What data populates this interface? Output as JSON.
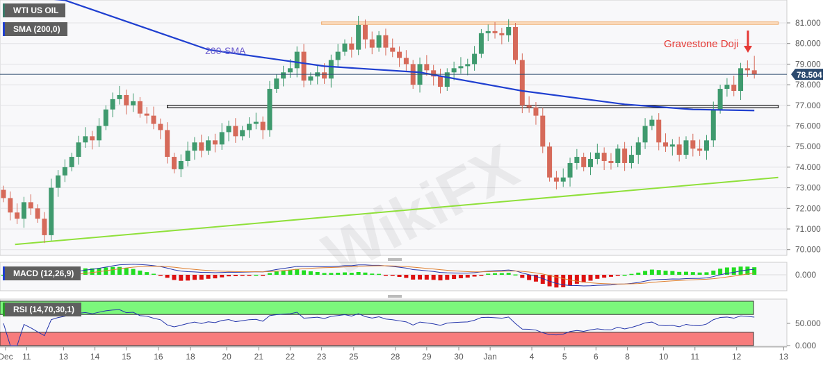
{
  "labels": {
    "instrument": "WTI US OIL",
    "sma": "SMA (200,0)",
    "macd": "MACD (12,26,9)",
    "rsi": "RSI (14,70,30,1)",
    "last_price": "78.504"
  },
  "colors": {
    "up": "#3f9a6e",
    "down": "#d66a5a",
    "sma": "#1f3fd0",
    "trendline": "#8fe03a",
    "resistance": "#f0b27a",
    "support": "#222222",
    "annotation_sma": "#6a5acd",
    "annotation_doji": "#e53935",
    "price_tag": "#2c4a6e",
    "rsi_overbought": "#7cf77c",
    "rsi_oversold": "#f77c7c"
  },
  "chart_data": {
    "type": "candlestick",
    "y_ticks": [
      "81.000",
      "80.000",
      "79.000",
      "78.000",
      "77.000",
      "76.000",
      "75.000",
      "74.000",
      "73.000",
      "72.000",
      "71.000",
      "70.000"
    ],
    "ylim": [
      69.8,
      82.1
    ],
    "closes": [
      72.5,
      71.8,
      71.5,
      72.3,
      72,
      71.5,
      70.7,
      73,
      73.6,
      74,
      74.5,
      75.2,
      75.5,
      75.3,
      76,
      76.8,
      77.3,
      77.5,
      77,
      77.2,
      76.6,
      76.5,
      76.1,
      75.8,
      74.5,
      73.9,
      74.3,
      74.8,
      75.2,
      74.8,
      75.3,
      75.1,
      75.7,
      76,
      75.5,
      75.8,
      76.1,
      76.2,
      75.8,
      77.8,
      78.3,
      78.6,
      78.8,
      79.6,
      78.2,
      78.4,
      78.6,
      78.3,
      79.2,
      79.6,
      80,
      79.7,
      80.9,
      80.2,
      79.8,
      80.4,
      79.8,
      79.6,
      79.3,
      79,
      78,
      79,
      78.7,
      78.4,
      77.9,
      78.6,
      78.8,
      78.9,
      79,
      79.5,
      80.5,
      80.6,
      80.5,
      80.4,
      80.8,
      79.2,
      77,
      76.9,
      76.5,
      75,
      73.5,
      73.3,
      73.5,
      74.2,
      74.5,
      74,
      74.4,
      74.7,
      74.3,
      74.2,
      74.9,
      74.2,
      74.6,
      75.2,
      76,
      76.3,
      75.2,
      75,
      75.1,
      74.6,
      75.3,
      74.9,
      74.8,
      75.3,
      76.8,
      77.8,
      78,
      77.7,
      78.8,
      78.7,
      78.5
    ],
    "first_open": 72.9,
    "last_high": 79.4,
    "sma200": [
      [
        9,
        82.1
      ],
      [
        30,
        79.7
      ],
      [
        47,
        78.9
      ],
      [
        61,
        78.6
      ],
      [
        76,
        77.7
      ],
      [
        91,
        77.05
      ],
      [
        101,
        76.8
      ],
      [
        110,
        76.75
      ]
    ],
    "trendline": [
      [
        1.7,
        70.25
      ],
      [
        113.5,
        73.5
      ]
    ],
    "support_zone": {
      "from_index": 24,
      "to_index": 113.5,
      "top": 77.0,
      "bottom": 76.88
    },
    "resistance_zone": {
      "from_index": 46.6,
      "to_index": 113.5,
      "top": 81.05,
      "bottom": 80.93
    },
    "x_ticks": [
      {
        "label": "Dec",
        "i": 0.3
      },
      {
        "label": "11",
        "i": 3.4
      },
      {
        "label": "13",
        "i": 8.8
      },
      {
        "label": "14",
        "i": 13.4
      },
      {
        "label": "15",
        "i": 18
      },
      {
        "label": "16",
        "i": 22.7
      },
      {
        "label": "18",
        "i": 27.4
      },
      {
        "label": "20",
        "i": 32.7
      },
      {
        "label": "21",
        "i": 37.4
      },
      {
        "label": "22",
        "i": 42
      },
      {
        "label": "23",
        "i": 46.6
      },
      {
        "label": "25",
        "i": 51.3
      },
      {
        "label": "28",
        "i": 57.4
      },
      {
        "label": "29",
        "i": 62
      },
      {
        "label": "30",
        "i": 66.7
      },
      {
        "label": "Jan",
        "i": 71.3
      },
      {
        "label": "4",
        "i": 77.4
      },
      {
        "label": "5",
        "i": 82.2
      },
      {
        "label": "6",
        "i": 86.8
      },
      {
        "label": "8",
        "i": 91.4
      },
      {
        "label": "10",
        "i": 96.7
      },
      {
        "label": "11",
        "i": 101.3
      },
      {
        "label": "12",
        "i": 107.4
      },
      {
        "label": "13",
        "i": 114.3
      }
    ],
    "annotations": [
      "200-SMA",
      "Gravestone Doji"
    ],
    "macd_ticks": [
      "0.000"
    ],
    "rsi_ticks": [
      "50.000",
      "0.000"
    ],
    "rsi_levels": [
      70,
      30
    ]
  }
}
